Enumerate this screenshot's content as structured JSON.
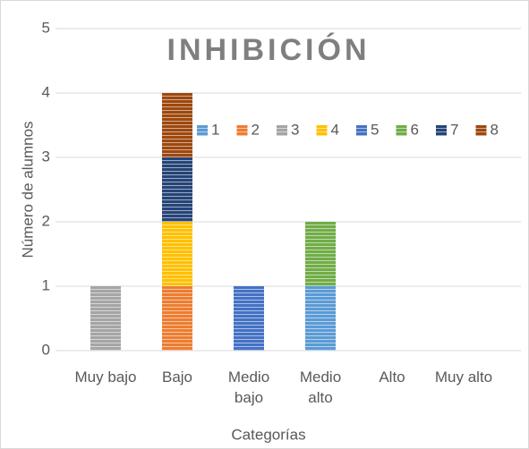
{
  "chart_data": {
    "type": "bar",
    "stacked": true,
    "title": "INHIBICIÓN",
    "x_label": "Categorías",
    "y_label": "Número de alumnos",
    "categories": [
      "Muy bajo",
      "Bajo",
      "Medio bajo",
      "Medio alto",
      "Alto",
      "Muy alto"
    ],
    "series": [
      {
        "name": "1",
        "color": "#5b9bd5",
        "values": [
          0,
          0,
          0,
          1,
          0,
          0
        ]
      },
      {
        "name": "2",
        "color": "#ed7d31",
        "values": [
          0,
          1,
          0,
          0,
          0,
          0
        ]
      },
      {
        "name": "3",
        "color": "#a5a5a5",
        "values": [
          1,
          0,
          0,
          0,
          0,
          0
        ]
      },
      {
        "name": "4",
        "color": "#ffc000",
        "values": [
          0,
          1,
          0,
          0,
          0,
          0
        ]
      },
      {
        "name": "5",
        "color": "#4472c4",
        "values": [
          0,
          0,
          1,
          0,
          0,
          0
        ]
      },
      {
        "name": "6",
        "color": "#70ad47",
        "values": [
          0,
          0,
          0,
          1,
          0,
          0
        ]
      },
      {
        "name": "7",
        "color": "#264478",
        "values": [
          0,
          1,
          0,
          0,
          0,
          0
        ]
      },
      {
        "name": "8",
        "color": "#9e480e",
        "values": [
          0,
          1,
          0,
          0,
          0,
          0
        ]
      }
    ],
    "ylim": [
      0,
      5
    ],
    "yticks": [
      0,
      1,
      2,
      3,
      4,
      5
    ],
    "grid": true,
    "legend": "top-right"
  }
}
